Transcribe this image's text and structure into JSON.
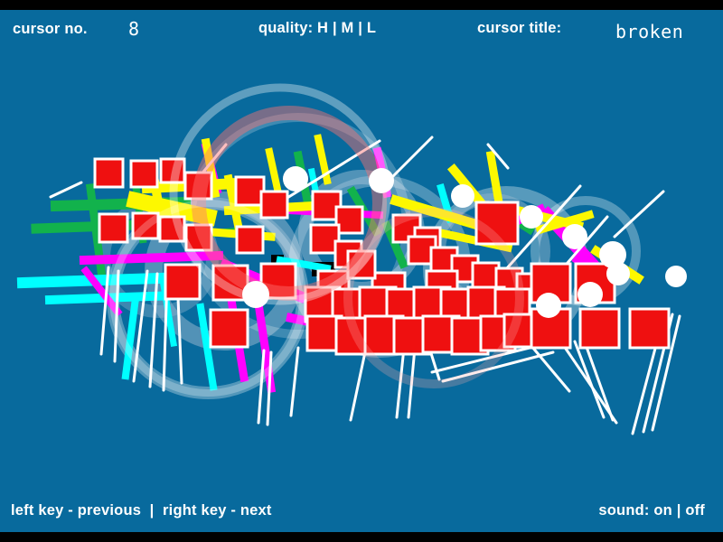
{
  "header": {
    "cursor_no_label": "cursor no.",
    "cursor_no_value": "8",
    "quality_label": "quality: H | M | L",
    "title_label": "cursor title:",
    "title_value": "broken"
  },
  "footer": {
    "nav_label": "left key - previous  |  right key - next",
    "sound_label": "sound: on | off"
  },
  "colors": {
    "background": "#086a9d",
    "bar": "#000000",
    "text": "#ffffff",
    "square_fill": "#ef1010",
    "square_border": "#ffffff",
    "y": "#fdf800",
    "m": "#ff00ff",
    "c": "#00ffff",
    "g": "#12b24c",
    "line": "#ffffff"
  },
  "artwork": {
    "arcs_back": [
      [
        230,
        330,
        105,
        "#ffffff",
        14,
        0.3
      ],
      [
        248,
        300,
        78,
        "#8fb3cc",
        20,
        0.55
      ],
      [
        420,
        295,
        95,
        "#ffffff",
        12,
        0.28
      ],
      [
        400,
        258,
        62,
        "#aac6da",
        16,
        0.45
      ],
      [
        560,
        298,
        85,
        "#ffffff",
        14,
        0.32
      ],
      [
        545,
        278,
        58,
        "#8fb3cc",
        12,
        0.5
      ],
      [
        648,
        278,
        56,
        "#ffffff",
        10,
        0.3
      ],
      [
        330,
        250,
        120,
        "#ffffff",
        10,
        0.22
      ],
      [
        175,
        285,
        60,
        "#8fb3cc",
        14,
        0.4
      ]
    ],
    "fragments": [
      [
        345,
        290,
        26,
        16
      ],
      [
        522,
        296,
        22,
        14
      ],
      [
        300,
        282,
        14,
        10
      ]
    ],
    "strokes": [
      [
        "g",
        40,
        253,
        180,
        248,
        11
      ],
      [
        "g",
        62,
        228,
        205,
        224,
        12
      ],
      [
        "g",
        100,
        208,
        112,
        300,
        9
      ],
      [
        "g",
        148,
        188,
        158,
        265,
        8
      ],
      [
        "g",
        330,
        172,
        342,
        232,
        9
      ],
      [
        "g",
        390,
        212,
        416,
        256,
        9
      ],
      [
        "g",
        428,
        250,
        446,
        292,
        9
      ],
      [
        "g",
        552,
        232,
        586,
        254,
        9
      ],
      [
        "g",
        196,
        262,
        260,
        256,
        8
      ],
      [
        "c",
        25,
        313,
        178,
        308,
        12
      ],
      [
        "c",
        55,
        332,
        195,
        327,
        10
      ],
      [
        "c",
        150,
        330,
        139,
        416,
        8
      ],
      [
        "c",
        222,
        340,
        236,
        428,
        8
      ],
      [
        "c",
        310,
        288,
        362,
        297,
        8
      ],
      [
        "c",
        424,
        344,
        470,
        353,
        8
      ],
      [
        "c",
        488,
        208,
        498,
        242,
        8
      ],
      [
        "c",
        180,
        310,
        192,
        380,
        7
      ],
      [
        "c",
        545,
        345,
        560,
        360,
        10
      ],
      [
        "c",
        345,
        190,
        352,
        225,
        7
      ],
      [
        "m",
        93,
        288,
        242,
        283,
        10
      ],
      [
        "m",
        250,
        294,
        332,
        328,
        12
      ],
      [
        "m",
        256,
        332,
        270,
        418,
        9
      ],
      [
        "m",
        286,
        336,
        300,
        430,
        9
      ],
      [
        "m",
        228,
        163,
        240,
        210,
        9
      ],
      [
        "m",
        418,
        168,
        428,
        214,
        9
      ],
      [
        "m",
        318,
        233,
        420,
        238,
        8
      ],
      [
        "m",
        606,
        238,
        664,
        302,
        14
      ],
      [
        "m",
        556,
        252,
        598,
        232,
        10
      ],
      [
        "m",
        638,
        288,
        668,
        310,
        8
      ],
      [
        "m",
        322,
        352,
        372,
        362,
        10
      ],
      [
        "m",
        95,
        300,
        130,
        345,
        8
      ],
      [
        "y",
        163,
        208,
        262,
        203,
        12
      ],
      [
        "y",
        150,
        222,
        230,
        240,
        18
      ],
      [
        "y",
        168,
        183,
        178,
        242,
        10
      ],
      [
        "y",
        228,
        158,
        238,
        214,
        9
      ],
      [
        "y",
        253,
        198,
        264,
        252,
        9
      ],
      [
        "y",
        253,
        233,
        346,
        228,
        10
      ],
      [
        "y",
        438,
        222,
        532,
        250,
        11
      ],
      [
        "y",
        502,
        188,
        540,
        234,
        10
      ],
      [
        "y",
        543,
        172,
        553,
        230,
        9
      ],
      [
        "y",
        553,
        228,
        640,
        250,
        10
      ],
      [
        "y",
        598,
        254,
        652,
        238,
        9
      ],
      [
        "y",
        488,
        258,
        562,
        274,
        9
      ],
      [
        "y",
        352,
        153,
        362,
        200,
        8
      ],
      [
        "y",
        298,
        168,
        308,
        214,
        8
      ],
      [
        "y",
        660,
        278,
        706,
        308,
        10
      ],
      [
        "y",
        210,
        255,
        300,
        262,
        9
      ]
    ],
    "lines": [
      [
        163,
        300,
        148,
        422
      ],
      [
        174,
        303,
        166,
        428
      ],
      [
        185,
        306,
        181,
        432
      ],
      [
        196,
        306,
        201,
        424
      ],
      [
        120,
        296,
        112,
        392
      ],
      [
        131,
        300,
        127,
        400
      ],
      [
        292,
        388,
        286,
        468
      ],
      [
        300,
        390,
        296,
        470
      ],
      [
        405,
        385,
        388,
        465
      ],
      [
        447,
        385,
        439,
        462
      ],
      [
        459,
        385,
        452,
        462
      ],
      [
        476,
        388,
        486,
        420
      ],
      [
        478,
        412,
        598,
        382
      ],
      [
        490,
        422,
        612,
        390
      ],
      [
        588,
        383,
        630,
        433
      ],
      [
        626,
        386,
        682,
        468
      ],
      [
        636,
        378,
        668,
        462
      ],
      [
        645,
        373,
        678,
        465
      ],
      [
        735,
        348,
        700,
        480
      ],
      [
        744,
        348,
        712,
        478
      ],
      [
        752,
        350,
        722,
        476
      ],
      [
        300,
        230,
        420,
        156
      ],
      [
        250,
        160,
        212,
        206
      ],
      [
        432,
        198,
        478,
        152
      ],
      [
        560,
        298,
        642,
        206
      ],
      [
        596,
        328,
        672,
        240
      ],
      [
        680,
        262,
        734,
        212
      ],
      [
        56,
        218,
        90,
        202
      ],
      [
        540,
        160,
        562,
        186
      ],
      [
        330,
        385,
        322,
        460
      ]
    ],
    "squares": [
      [
        105,
        176,
        31
      ],
      [
        145,
        178,
        29
      ],
      [
        178,
        176,
        26
      ],
      [
        205,
        191,
        29
      ],
      [
        261,
        196,
        31
      ],
      [
        289,
        212,
        29
      ],
      [
        346,
        212,
        31
      ],
      [
        372,
        229,
        29
      ],
      [
        527,
        224,
        46
      ],
      [
        110,
        237,
        31
      ],
      [
        147,
        236,
        28
      ],
      [
        177,
        240,
        27
      ],
      [
        206,
        249,
        28
      ],
      [
        262,
        251,
        29
      ],
      [
        344,
        249,
        31
      ],
      [
        371,
        267,
        29
      ],
      [
        435,
        238,
        30
      ],
      [
        459,
        252,
        28
      ],
      [
        183,
        293,
        38
      ],
      [
        236,
        294,
        38
      ],
      [
        289,
        292,
        38
      ],
      [
        452,
        262,
        30
      ],
      [
        477,
        274,
        29
      ],
      [
        500,
        283,
        29
      ],
      [
        523,
        291,
        29
      ],
      [
        549,
        297,
        29
      ],
      [
        572,
        303,
        29
      ],
      [
        352,
        300,
        34
      ],
      [
        412,
        302,
        36
      ],
      [
        472,
        300,
        34
      ],
      [
        338,
        318,
        38
      ],
      [
        368,
        320,
        40
      ],
      [
        398,
        318,
        40
      ],
      [
        428,
        320,
        42
      ],
      [
        458,
        318,
        40
      ],
      [
        488,
        320,
        40
      ],
      [
        518,
        318,
        40
      ],
      [
        548,
        320,
        38
      ],
      [
        340,
        350,
        38
      ],
      [
        372,
        352,
        40
      ],
      [
        404,
        350,
        42
      ],
      [
        436,
        352,
        40
      ],
      [
        468,
        350,
        40
      ],
      [
        500,
        352,
        40
      ],
      [
        532,
        350,
        38
      ],
      [
        558,
        348,
        36
      ],
      [
        588,
        292,
        43
      ],
      [
        637,
        292,
        43
      ],
      [
        588,
        342,
        43
      ],
      [
        642,
        342,
        43
      ],
      [
        697,
        342,
        43
      ],
      [
        233,
        343,
        41
      ],
      [
        385,
        278,
        30
      ]
    ],
    "arcs_front": [
      [
        320,
        225,
        100,
        "#ff7070",
        16,
        0.45
      ],
      [
        310,
        215,
        118,
        "#ffffff",
        9,
        0.35
      ],
      [
        480,
        330,
        95,
        "#ffb0b0",
        10,
        0.25
      ],
      [
        230,
        330,
        105,
        "#ffffff",
        8,
        0.25
      ]
    ],
    "dots": [
      [
        327,
        198,
        14
      ],
      [
        422,
        200,
        14
      ],
      [
        512,
        217,
        13
      ],
      [
        588,
        240,
        13
      ],
      [
        636,
        262,
        14
      ],
      [
        678,
        282,
        15
      ],
      [
        684,
        303,
        13
      ],
      [
        653,
        326,
        14
      ],
      [
        607,
        338,
        14
      ],
      [
        283,
        326,
        15
      ],
      [
        748,
        306,
        12
      ]
    ]
  }
}
